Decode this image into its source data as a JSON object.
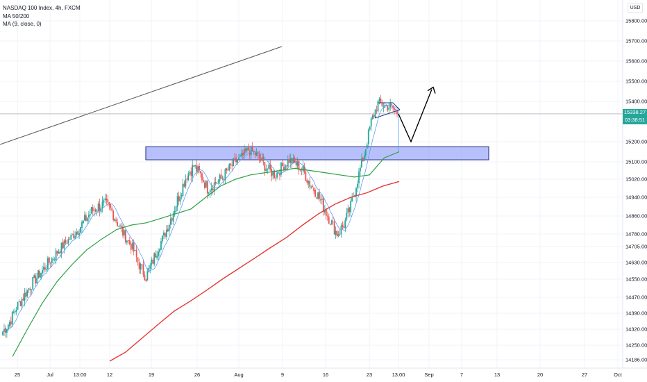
{
  "legend": {
    "symbol": "NASDAQ 100 Index, 4h, FXCM",
    "ma1": "MA 50/200",
    "ma2": "MA (9, close, 0)"
  },
  "currency": "USD",
  "last_price": {
    "value": "15338.27",
    "countdown": "03:38:51"
  },
  "colors": {
    "up": "#26a69a",
    "down": "#ef5350",
    "ma9": "#5b9cf6",
    "ma50": "#2ea043",
    "ma200": "#e53935",
    "zone_fill": "#7b8cf5",
    "zone_stroke": "#1a237e",
    "trendline": "#555555"
  },
  "chart_data": {
    "type": "candlestick",
    "instrument": "NASDAQ 100 Index",
    "timeframe": "4h",
    "source": "FXCM",
    "y_ticks": [
      15800,
      15700,
      15600,
      15500,
      15400,
      15200,
      15100,
      15020,
      14940,
      14860,
      14780,
      14705,
      14630,
      14550,
      14470,
      14390,
      14320,
      14250,
      14186
    ],
    "y_tick_labels": [
      "15800.00",
      "15700.00",
      "15600.00",
      "15500.00",
      "15400.00",
      "15200.00",
      "15100.00",
      "15020.00",
      "14940.00",
      "14860.00",
      "14780.00",
      "14705.00",
      "14630.00",
      "14550.00",
      "14470.00",
      "14390.00",
      "14320.00",
      "14250.00",
      "14186.00"
    ],
    "x_ticks": [
      "25",
      "Jul",
      "13:00",
      "12",
      "19",
      "26",
      "Aug",
      "9",
      "16",
      "23",
      "13:00",
      "Sep",
      "7",
      "13",
      "20",
      "27",
      "Oct"
    ],
    "ylim": [
      14180,
      15860
    ],
    "current_price": 15338.27,
    "closes_approx": [
      14310,
      14350,
      14420,
      14470,
      14520,
      14560,
      14600,
      14640,
      14680,
      14720,
      14760,
      14800,
      14840,
      14880,
      14900,
      14910,
      14880,
      14820,
      14760,
      14700,
      14620,
      14560,
      14640,
      14720,
      14800,
      14880,
      14960,
      15040,
      15080,
      15040,
      14980,
      15000,
      15020,
      15060,
      15100,
      15120,
      15160,
      15140,
      15100,
      15060,
      15040,
      15080,
      15110,
      15090,
      15060,
      15000,
      14960,
      14900,
      14840,
      14780,
      14820,
      14900,
      15020,
      15140,
      15300,
      15390,
      15380,
      15370,
      15340
    ],
    "resistance_zone": {
      "low": 15110,
      "high": 15175
    },
    "ma50_approx": [
      14200,
      14320,
      14440,
      14540,
      14620,
      14690,
      14750,
      14800,
      14820,
      14830,
      14850,
      14870,
      14890,
      14940,
      14990,
      15020,
      15040,
      15050,
      15060,
      15070,
      15060,
      15050,
      15040,
      15030,
      15040,
      15120,
      15150
    ],
    "ma200_approx": [
      14180,
      14220,
      14280,
      14340,
      14400,
      14450,
      14500,
      14550,
      14600,
      14650,
      14700,
      14760,
      14820,
      14870,
      14910,
      14940,
      14960,
      14990,
      15010
    ],
    "projection": [
      15338,
      15200,
      15460
    ]
  }
}
